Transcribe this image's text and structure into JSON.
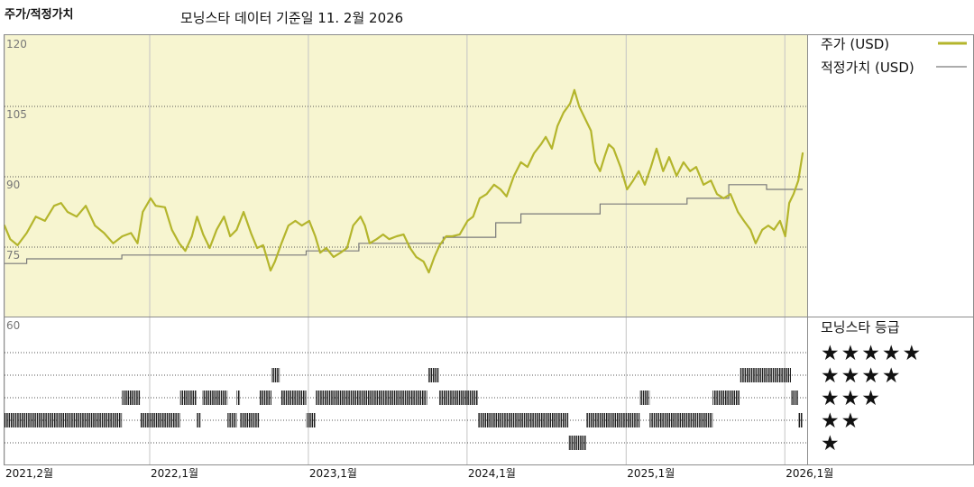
{
  "colors": {
    "price_line": "#b4b52c",
    "fair_value_line": "#7a7a7a",
    "plot_background": "#f7f5d0",
    "rating_bar": "#1e1e1e"
  },
  "chart_data": {
    "type": "line",
    "title": "주가/적정가치",
    "subtitle": "모닝스타 데이터 기준일 11. 2월 2026",
    "ylim": [
      60,
      120
    ],
    "y_ticks": [
      120,
      105,
      90,
      75,
      60
    ],
    "xlim": [
      "2021-02-01",
      "2026-02-11"
    ],
    "x_ticks": [
      {
        "date": "2021-02-01",
        "label": "2021,2월"
      },
      {
        "date": "2022-01-01",
        "label": "2022,1월"
      },
      {
        "date": "2023-01-01",
        "label": "2023,1월"
      },
      {
        "date": "2024-01-01",
        "label": "2024,1월"
      },
      {
        "date": "2025-01-01",
        "label": "2025,1월"
      },
      {
        "date": "2026-01-01",
        "label": "2026,1월"
      }
    ],
    "grid": true,
    "legend_position": "right",
    "series": [
      {
        "name": "주가 (USD)",
        "x": [
          "2021-02-01",
          "2021-02-14",
          "2021-03-03",
          "2021-03-24",
          "2021-04-14",
          "2021-05-05",
          "2021-05-26",
          "2021-06-11",
          "2021-06-26",
          "2021-07-17",
          "2021-08-07",
          "2021-08-28",
          "2021-09-18",
          "2021-10-09",
          "2021-10-30",
          "2021-11-19",
          "2021-12-04",
          "2021-12-16",
          "2022-01-03",
          "2022-01-15",
          "2022-02-05",
          "2022-02-21",
          "2022-03-10",
          "2022-03-24",
          "2022-04-08",
          "2022-04-20",
          "2022-05-04",
          "2022-05-19",
          "2022-06-04",
          "2022-06-21",
          "2022-07-05",
          "2022-07-20",
          "2022-08-05",
          "2022-08-22",
          "2022-09-05",
          "2022-09-19",
          "2022-10-06",
          "2022-10-16",
          "2022-10-31",
          "2022-11-16",
          "2022-12-02",
          "2022-12-17",
          "2023-01-03",
          "2023-01-17",
          "2023-01-28",
          "2023-02-11",
          "2023-02-28",
          "2023-03-16",
          "2023-03-31",
          "2023-04-14",
          "2023-05-01",
          "2023-05-11",
          "2023-05-22",
          "2023-06-07",
          "2023-06-22",
          "2023-07-06",
          "2023-07-23",
          "2023-08-08",
          "2023-08-23",
          "2023-09-06",
          "2023-09-23",
          "2023-10-05",
          "2023-10-18",
          "2023-10-30",
          "2023-11-14",
          "2023-11-28",
          "2023-12-15",
          "2024-01-02",
          "2024-01-15",
          "2024-01-30",
          "2024-02-15",
          "2024-03-03",
          "2024-03-18",
          "2024-04-01",
          "2024-04-18",
          "2024-05-04",
          "2024-05-19",
          "2024-06-03",
          "2024-06-19",
          "2024-06-30",
          "2024-07-14",
          "2024-07-27",
          "2024-08-10",
          "2024-08-25",
          "2024-09-04",
          "2024-09-15",
          "2024-09-27",
          "2024-10-12",
          "2024-10-22",
          "2024-11-02",
          "2024-11-12",
          "2024-11-22",
          "2024-12-03",
          "2024-12-19",
          "2025-01-03",
          "2025-01-17",
          "2025-01-30",
          "2025-02-13",
          "2025-02-27",
          "2025-03-12",
          "2025-03-27",
          "2025-04-10",
          "2025-04-27",
          "2025-05-13",
          "2025-05-28",
          "2025-06-11",
          "2025-06-28",
          "2025-07-15",
          "2025-07-29",
          "2025-08-13",
          "2025-08-29",
          "2025-09-15",
          "2025-09-29",
          "2025-10-14",
          "2025-10-26",
          "2025-11-10",
          "2025-11-24",
          "2025-12-07",
          "2025-12-21",
          "2026-01-02",
          "2026-01-11",
          "2026-01-21",
          "2026-02-01",
          "2026-02-11"
        ],
        "y": [
          79.6,
          76.7,
          75.4,
          78.0,
          81.5,
          80.6,
          83.8,
          84.4,
          82.5,
          81.5,
          83.8,
          79.6,
          78.0,
          75.8,
          77.3,
          78.0,
          75.8,
          82.5,
          85.4,
          83.8,
          83.5,
          78.7,
          75.8,
          74.2,
          77.3,
          81.5,
          77.7,
          74.8,
          78.7,
          81.5,
          77.3,
          78.7,
          82.5,
          78.0,
          74.8,
          75.4,
          70.0,
          71.9,
          75.8,
          79.6,
          80.6,
          79.6,
          80.6,
          77.3,
          73.8,
          74.8,
          72.9,
          73.8,
          74.8,
          79.6,
          81.5,
          79.6,
          75.8,
          76.7,
          77.7,
          76.7,
          77.3,
          77.7,
          74.8,
          72.9,
          71.9,
          69.6,
          72.9,
          75.4,
          77.3,
          77.3,
          77.7,
          80.6,
          81.5,
          85.4,
          86.3,
          88.3,
          87.3,
          85.8,
          90.2,
          93.1,
          92.1,
          95.0,
          96.9,
          98.5,
          96.0,
          100.8,
          103.7,
          105.6,
          108.5,
          105.0,
          102.7,
          99.8,
          93.1,
          91.2,
          94.2,
          96.9,
          96.0,
          92.1,
          87.3,
          89.2,
          91.2,
          88.3,
          92.1,
          96.0,
          91.2,
          94.2,
          90.2,
          93.1,
          91.2,
          92.1,
          88.3,
          89.2,
          86.3,
          85.4,
          86.3,
          82.5,
          80.6,
          78.7,
          75.8,
          78.7,
          79.6,
          78.7,
          80.6,
          77.3,
          84.4,
          86.3,
          89.2,
          95.0
        ]
      },
      {
        "name": "적정가치 (USD)",
        "line_style": "step",
        "x": [
          "2021-02-01",
          "2021-03-24",
          "2021-10-29",
          "2022-12-27",
          "2023-04-27",
          "2023-11-07",
          "2024-03-07",
          "2024-05-04",
          "2024-11-02",
          "2025-05-21",
          "2025-08-25",
          "2025-11-20",
          "2026-02-11"
        ],
        "y": [
          71.5,
          72.5,
          73.3,
          74.2,
          75.8,
          77.1,
          80.2,
          82.1,
          84.2,
          85.4,
          88.3,
          87.3,
          87.3
        ]
      }
    ],
    "ratings": {
      "title": "모닝스타 등급",
      "levels": [
        "★★★★★",
        "★★★★",
        "★★★",
        "★★",
        "★"
      ],
      "segments": [
        {
          "start": "2021-02-01",
          "end": "2021-10-29",
          "stars": 2
        },
        {
          "start": "2021-10-29",
          "end": "2021-12-10",
          "stars": 3
        },
        {
          "start": "2021-12-10",
          "end": "2022-03-12",
          "stars": 2
        },
        {
          "start": "2022-03-12",
          "end": "2022-04-18",
          "stars": 3
        },
        {
          "start": "2022-04-18",
          "end": "2022-04-28",
          "stars": 2
        },
        {
          "start": "2022-05-02",
          "end": "2022-06-29",
          "stars": 3
        },
        {
          "start": "2022-06-29",
          "end": "2022-07-20",
          "stars": 2
        },
        {
          "start": "2022-07-20",
          "end": "2022-07-28",
          "stars": 3
        },
        {
          "start": "2022-07-28",
          "end": "2022-09-11",
          "stars": 2
        },
        {
          "start": "2022-09-11",
          "end": "2022-10-08",
          "stars": 3
        },
        {
          "start": "2022-10-08",
          "end": "2022-10-27",
          "stars": 4
        },
        {
          "start": "2022-10-29",
          "end": "2022-12-27",
          "stars": 3
        },
        {
          "start": "2022-12-27",
          "end": "2023-01-17",
          "stars": 2
        },
        {
          "start": "2023-01-17",
          "end": "2023-10-01",
          "stars": 3
        },
        {
          "start": "2023-10-03",
          "end": "2023-10-28",
          "stars": 4
        },
        {
          "start": "2023-10-28",
          "end": "2024-01-26",
          "stars": 3
        },
        {
          "start": "2024-01-26",
          "end": "2024-08-21",
          "stars": 2
        },
        {
          "start": "2024-08-21",
          "end": "2024-10-01",
          "stars": 1
        },
        {
          "start": "2024-10-01",
          "end": "2025-02-01",
          "stars": 2
        },
        {
          "start": "2025-02-01",
          "end": "2025-02-24",
          "stars": 3
        },
        {
          "start": "2025-02-24",
          "end": "2025-07-19",
          "stars": 2
        },
        {
          "start": "2025-07-19",
          "end": "2025-09-19",
          "stars": 3
        },
        {
          "start": "2025-09-19",
          "end": "2026-01-15",
          "stars": 4
        },
        {
          "start": "2026-01-15",
          "end": "2026-02-01",
          "stars": 3
        },
        {
          "start": "2026-02-01",
          "end": "2026-02-11",
          "stars": 2
        }
      ]
    }
  }
}
